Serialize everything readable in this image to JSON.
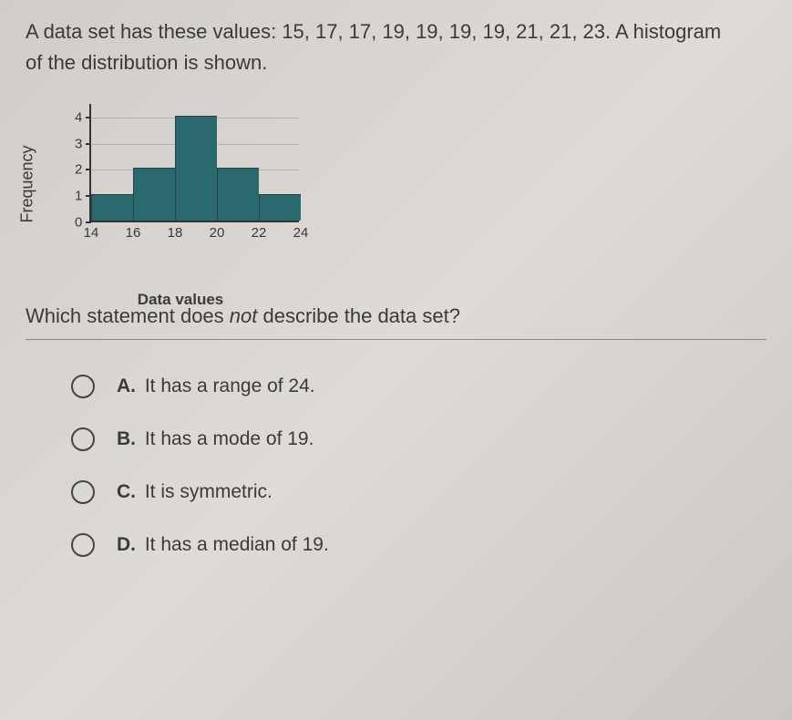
{
  "question": {
    "text_line1": "A data set has these values: 15, 17, 17, 19, 19, 19, 19, 21, 21, 23. A histogram",
    "text_line2": "of the distribution is shown.",
    "sub_text_pre": "Which statement does ",
    "sub_text_italic": "not",
    "sub_text_post": " describe the data set?"
  },
  "chart": {
    "type": "histogram",
    "y_label": "Frequency",
    "x_label": "Data values",
    "bar_color": "#2a6a6f",
    "grid_color": "#b0b0b0",
    "axis_color": "#333333",
    "x_ticks": [
      14,
      16,
      18,
      20,
      22,
      24
    ],
    "y_ticks": [
      0,
      1,
      2,
      3,
      4
    ],
    "ylim": [
      0,
      4.5
    ],
    "xlim": [
      14,
      24
    ],
    "bins": [
      {
        "start": 14,
        "end": 16,
        "freq": 1
      },
      {
        "start": 16,
        "end": 18,
        "freq": 2
      },
      {
        "start": 18,
        "end": 20,
        "freq": 4
      },
      {
        "start": 20,
        "end": 22,
        "freq": 2
      },
      {
        "start": 22,
        "end": 24,
        "freq": 1
      }
    ],
    "label_fontsize": 17,
    "tick_fontsize": 15
  },
  "options": [
    {
      "letter": "A.",
      "text": "It has a range of 24."
    },
    {
      "letter": "B.",
      "text": "It has a mode of 19."
    },
    {
      "letter": "C.",
      "text": "It is symmetric."
    },
    {
      "letter": "D.",
      "text": "It has a median of 19."
    }
  ]
}
